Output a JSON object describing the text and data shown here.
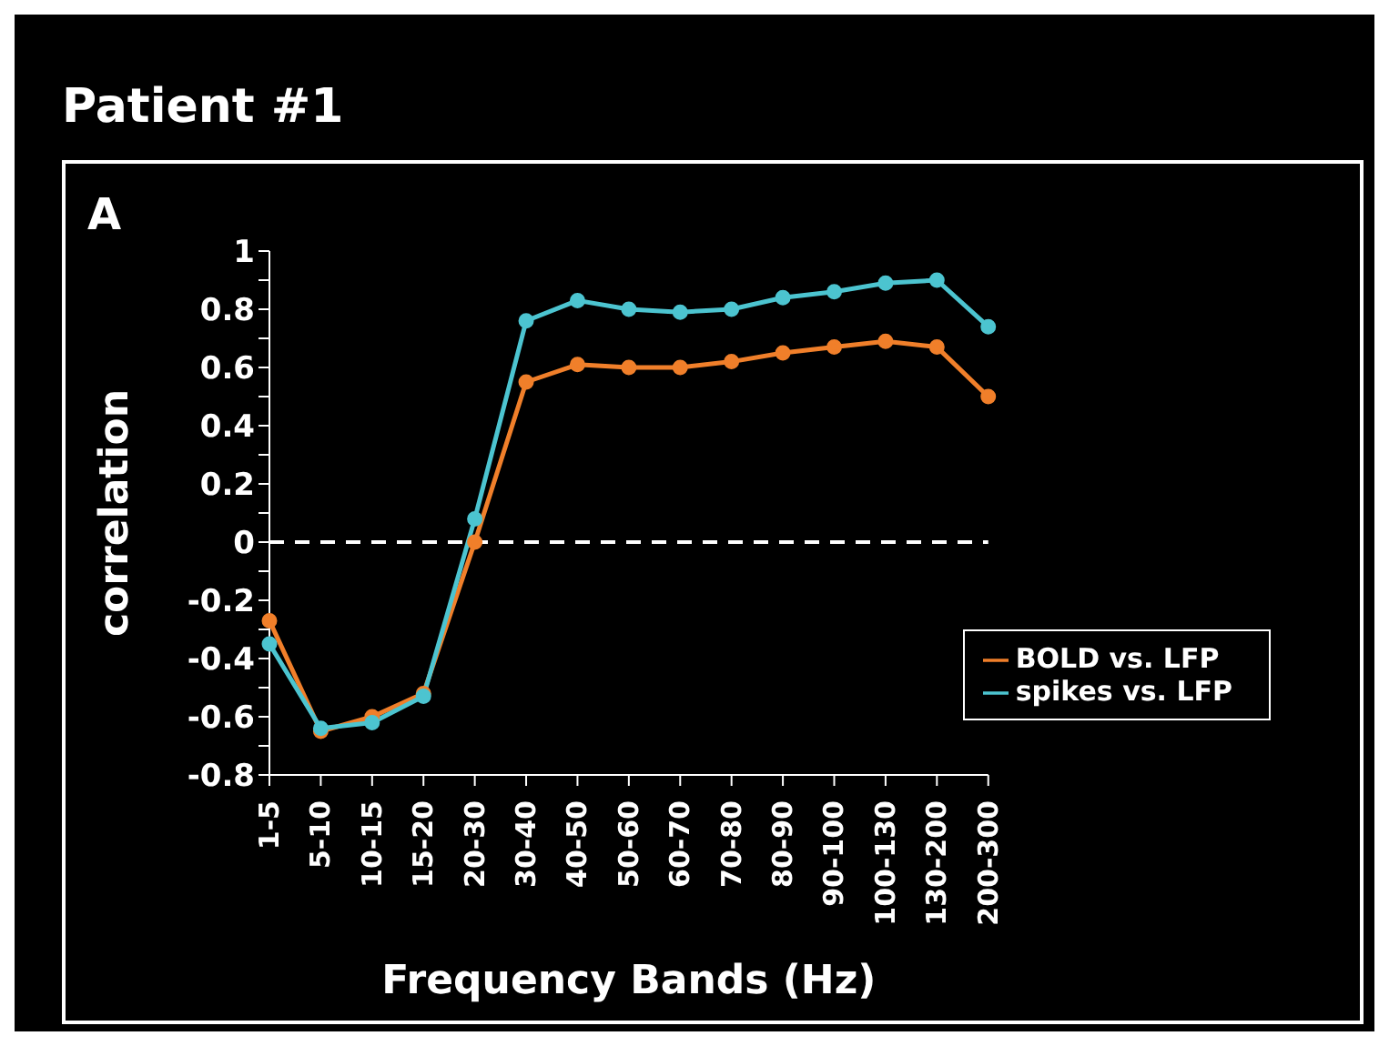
{
  "chart_data": {
    "type": "line",
    "title": "Patient #1",
    "annotations": [
      "A"
    ],
    "xlabel": "Frequency Bands (Hz)",
    "ylabel": "correlation",
    "categories": [
      "1-5",
      "5-10",
      "10-15",
      "15-20",
      "20-30",
      "30-40",
      "40-50",
      "50-60",
      "60-70",
      "70-80",
      "80-90",
      "90-100",
      "100-130",
      "130-200",
      "200-300"
    ],
    "series": [
      {
        "name": "BOLD vs. LFP",
        "color": "#f07f2a",
        "values": [
          -0.27,
          -0.65,
          -0.6,
          -0.52,
          0.0,
          0.55,
          0.61,
          0.6,
          0.6,
          0.62,
          0.65,
          0.67,
          0.69,
          0.67,
          0.5
        ]
      },
      {
        "name": "spikes vs. LFP",
        "color": "#4cc4d0",
        "values": [
          -0.35,
          -0.64,
          -0.62,
          -0.53,
          0.08,
          0.76,
          0.83,
          0.8,
          0.79,
          0.8,
          0.84,
          0.86,
          0.89,
          0.9,
          0.74
        ]
      }
    ],
    "ylim": [
      -0.8,
      1
    ],
    "yticks": [
      -0.8,
      {
        "value": -0.7,
        "label": null
      },
      -0.6,
      {
        "value": -0.5,
        "label": null
      },
      -0.4,
      {
        "value": -0.3,
        "label": null
      },
      -0.2,
      {
        "value": -0.1,
        "label": null
      },
      0,
      {
        "value": 0.1,
        "label": null
      },
      0.2,
      {
        "value": 0.3,
        "label": null
      },
      0.4,
      {
        "value": 0.5,
        "label": null
      },
      0.6,
      {
        "value": 0.7,
        "label": null
      },
      0.8,
      {
        "value": 0.9,
        "label": null
      },
      1
    ],
    "ref_lines": [
      {
        "axis": "y",
        "value": 0,
        "color": "#ffffff",
        "line_style": "dashed"
      }
    ],
    "legend": "bottom right",
    "marker": "circle",
    "line_style": "solid",
    "grid": false
  }
}
